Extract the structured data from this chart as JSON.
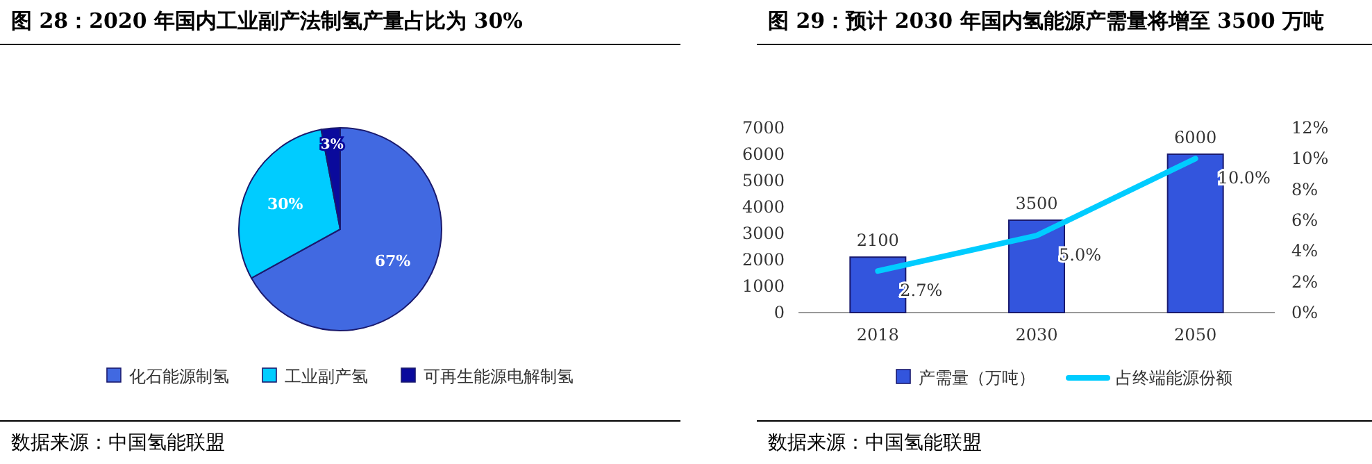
{
  "chart_data": [
    {
      "type": "pie",
      "title": "图 28：2020 年国内工业副产法制氢产量占比为 30%",
      "categories": [
        "化石能源制氢",
        "工业副产氢",
        "可再生能源电解制氢"
      ],
      "values": [
        67,
        30,
        3
      ],
      "colors": [
        "#4169e1",
        "#00ccff",
        "#0a0a9c"
      ],
      "value_labels": [
        "67%",
        "30%",
        "3%"
      ],
      "legend": "bottom",
      "annotations": [
        "数据来源：中国氢能联盟"
      ]
    },
    {
      "type": "bar",
      "title": "图 29：预计 2030 年国内氢能源产需量将增至 3500 万吨",
      "categories": [
        "2018",
        "2030",
        "2050"
      ],
      "series": [
        {
          "name": "产需量（万吨）",
          "type": "bar",
          "color": "#3355dd",
          "values": [
            2100,
            3500,
            6000
          ],
          "value_labels": [
            "2100",
            "3500",
            "6000"
          ]
        },
        {
          "name": "占终端能源份额",
          "type": "line",
          "axis": "y2",
          "color": "#00ccff",
          "values": [
            2.7,
            5.0,
            10.0
          ],
          "value_labels": [
            "2.7%",
            "5.0%",
            "10.0%"
          ]
        }
      ],
      "ylim": [
        0,
        7000
      ],
      "yticks": [
        0,
        1000,
        2000,
        3000,
        4000,
        5000,
        6000,
        7000
      ],
      "y2lim": [
        0,
        12
      ],
      "y2ticks": [
        {
          "value": 0,
          "label": "0%"
        },
        {
          "value": 2,
          "label": "2%"
        },
        {
          "value": 4,
          "label": "4%"
        },
        {
          "value": 6,
          "label": "6%"
        },
        {
          "value": 8,
          "label": "8%"
        },
        {
          "value": 10,
          "label": "10%"
        },
        {
          "value": 12,
          "label": "12%"
        }
      ],
      "marker": "none",
      "legend": "bottom",
      "annotations": [
        "数据来源：中国氢能联盟"
      ]
    }
  ]
}
